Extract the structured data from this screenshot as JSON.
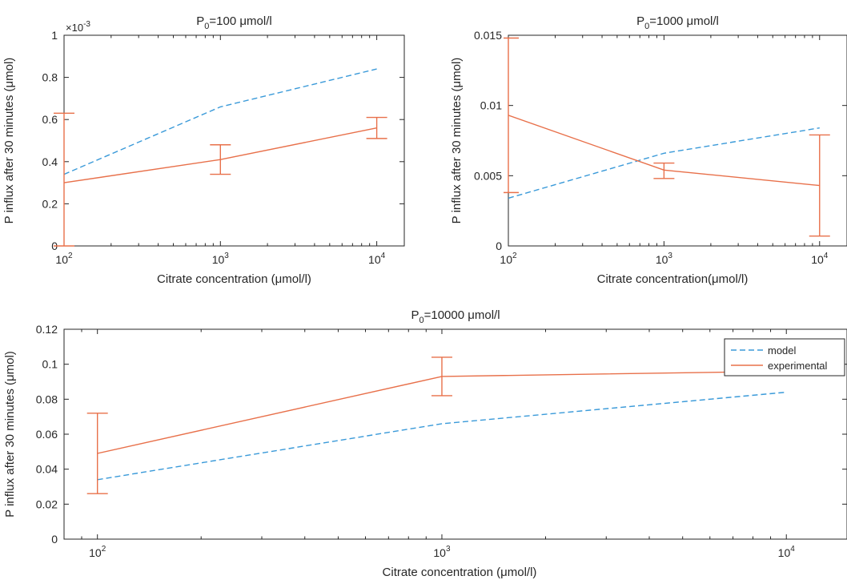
{
  "colors": {
    "model": "#3a9ad9",
    "experimental": "#e8704a",
    "axis": "#262626"
  },
  "chart_data": [
    {
      "type": "line",
      "title": "P0=100 μmol/l",
      "title_parts": {
        "prefix": "P",
        "sub": "0",
        "suffix": "=100 μmol/l"
      },
      "xlabel": "Citrate concentration (μmol/l)",
      "ylabel": "P influx after 30 minutes (μmol)",
      "xscale": "log",
      "xlim": [
        100,
        15000
      ],
      "ylim": [
        0,
        0.001
      ],
      "exponent_label": "×10",
      "exponent_power": "-3",
      "x_ticks": [
        100,
        1000,
        10000
      ],
      "x_tick_labels": [
        {
          "base": "10",
          "exp": "2"
        },
        {
          "base": "10",
          "exp": "3"
        },
        {
          "base": "10",
          "exp": "4"
        }
      ],
      "y_ticks": [
        0,
        0.0002,
        0.0004,
        0.0006,
        0.0008,
        0.001
      ],
      "y_tick_labels": [
        "0",
        "0.2",
        "0.4",
        "0.6",
        "0.8",
        "1"
      ],
      "legend": false,
      "series": [
        {
          "name": "model",
          "style": "dashed",
          "x": [
            100,
            1000,
            10000
          ],
          "y": [
            0.00034,
            0.00066,
            0.00084
          ]
        },
        {
          "name": "experimental",
          "style": "solid",
          "x": [
            100,
            1000,
            10000
          ],
          "y": [
            0.0003,
            0.00041,
            0.00056
          ],
          "err_low": [
            0.0,
            0.00034,
            0.00051
          ],
          "err_high": [
            0.00063,
            0.00048,
            0.00061
          ]
        }
      ]
    },
    {
      "type": "line",
      "title": "P0=1000 μmol/l",
      "title_parts": {
        "prefix": "P",
        "sub": "0",
        "suffix": "=1000 μmol/l"
      },
      "xlabel": "Citrate concentration(μmol/l)",
      "ylabel": "P influx after 30 minutes (μmol)",
      "xscale": "log",
      "xlim": [
        100,
        15000
      ],
      "ylim": [
        0,
        0.015
      ],
      "x_ticks": [
        100,
        1000,
        10000
      ],
      "x_tick_labels": [
        {
          "base": "10",
          "exp": "2"
        },
        {
          "base": "10",
          "exp": "3"
        },
        {
          "base": "10",
          "exp": "4"
        }
      ],
      "y_ticks": [
        0,
        0.005,
        0.01,
        0.015
      ],
      "y_tick_labels": [
        "0",
        "0.005",
        "0.01",
        "0.015"
      ],
      "legend": false,
      "series": [
        {
          "name": "model",
          "style": "dashed",
          "x": [
            100,
            1000,
            10000
          ],
          "y": [
            0.0034,
            0.0066,
            0.0084
          ]
        },
        {
          "name": "experimental",
          "style": "solid",
          "x": [
            100,
            1000,
            10000
          ],
          "y": [
            0.0093,
            0.0054,
            0.0043
          ],
          "err_low": [
            0.0038,
            0.0048,
            0.0007
          ],
          "err_high": [
            0.0148,
            0.0059,
            0.0079
          ]
        }
      ]
    },
    {
      "type": "line",
      "title": "P0=10000 μmol/l",
      "title_parts": {
        "prefix": "P",
        "sub": "0",
        "suffix": "=10000 μmol/l"
      },
      "xlabel": "Citrate concentration (μmol/l)",
      "ylabel": "P influx after 30 minutes (μmol)",
      "xscale": "log",
      "xlim": [
        80,
        15000
      ],
      "ylim": [
        0,
        0.12
      ],
      "x_ticks": [
        100,
        1000,
        10000
      ],
      "x_tick_labels": [
        {
          "base": "10",
          "exp": "2"
        },
        {
          "base": "10",
          "exp": "3"
        },
        {
          "base": "10",
          "exp": "4"
        }
      ],
      "y_ticks": [
        0,
        0.02,
        0.04,
        0.06,
        0.08,
        0.1,
        0.12
      ],
      "y_tick_labels": [
        "0",
        "0.02",
        "0.04",
        "0.06",
        "0.08",
        "0.1",
        "0.12"
      ],
      "legend": true,
      "legend_position": "top-right",
      "series": [
        {
          "name": "model",
          "style": "dashed",
          "x": [
            100,
            1000,
            10000
          ],
          "y": [
            0.034,
            0.066,
            0.084
          ]
        },
        {
          "name": "experimental",
          "style": "solid",
          "x": [
            100,
            1000,
            10000
          ],
          "y": [
            0.049,
            0.093,
            0.096
          ],
          "err_low": [
            0.026,
            0.082,
            null
          ],
          "err_high": [
            0.072,
            0.104,
            null
          ]
        }
      ]
    }
  ]
}
